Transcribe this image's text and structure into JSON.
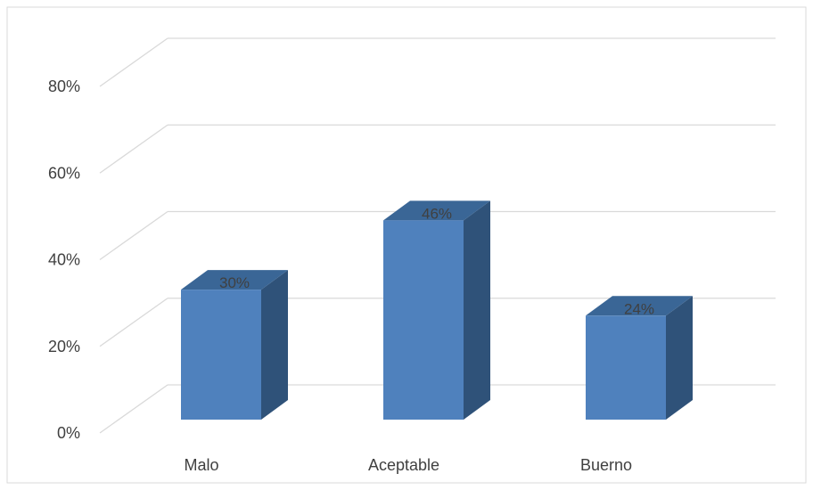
{
  "chart_data": {
    "type": "bar",
    "style": "3d-column",
    "categories": [
      "Malo",
      "Aceptable",
      "Buerno"
    ],
    "values": [
      30,
      46,
      24
    ],
    "data_labels": [
      "30%",
      "46%",
      "24%"
    ],
    "ylim": [
      0,
      80
    ],
    "yticks": [
      0,
      20,
      40,
      60,
      80
    ],
    "ytick_labels": [
      "0%",
      "20%",
      "40%",
      "60%",
      "80%"
    ],
    "grid": true,
    "legend": "none",
    "colors": {
      "bar_front": "#4f81bd",
      "bar_side": "#2f5279",
      "bar_top": "#3a6696",
      "grid": "#d9d9d9",
      "border": "#d9d9d9"
    }
  }
}
